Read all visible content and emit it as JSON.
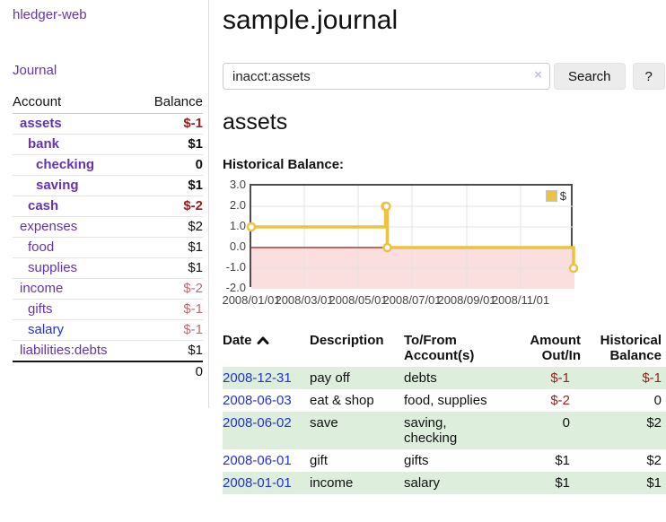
{
  "colors": {
    "link_purple": "#6434af",
    "link_blue": "#2331d8",
    "negative_strong": "#9b1c1c",
    "negative_muted": "#b96c6c",
    "row_shade_green": "#ddeedd",
    "accent_yellow": "#edc240",
    "chart_negative_fill": "#fbdede",
    "chart_zero_line": "#8b1a1a",
    "chart_grid": "#e3e3e3"
  },
  "app": {
    "brand": "hledger-web",
    "nav_journal": "Journal"
  },
  "sidebar": {
    "header": {
      "account": "Account",
      "balance": "Balance"
    },
    "accounts": [
      {
        "name": "assets",
        "depth": 0,
        "balance": "$-1",
        "bold": true,
        "neg": "strong"
      },
      {
        "name": "bank",
        "depth": 1,
        "balance": "$1",
        "bold": true
      },
      {
        "name": "checking",
        "depth": 2,
        "balance": "0",
        "bold": true
      },
      {
        "name": "saving",
        "depth": 2,
        "balance": "$1",
        "bold": true
      },
      {
        "name": "cash",
        "depth": 1,
        "balance": "$-2",
        "bold": true,
        "neg": "strong"
      },
      {
        "name": "expenses",
        "depth": 0,
        "balance": "$2"
      },
      {
        "name": "food",
        "depth": 1,
        "balance": "$1"
      },
      {
        "name": "supplies",
        "depth": 1,
        "balance": "$1"
      },
      {
        "name": "income",
        "depth": 0,
        "balance": "$-2",
        "neg": "muted"
      },
      {
        "name": "gifts",
        "depth": 1,
        "balance": "$-1",
        "neg": "muted"
      },
      {
        "name": "salary",
        "depth": 1,
        "balance": "$-1",
        "neg": "muted",
        "link_color": "blue"
      },
      {
        "name": "liabilities:debts",
        "depth": 0,
        "balance": "$1"
      }
    ],
    "total": "0"
  },
  "header": {
    "title": "sample.journal"
  },
  "search": {
    "value": "inacct:assets",
    "clear_icon": "×",
    "button": "Search",
    "help": "?"
  },
  "account_page": {
    "title": "assets",
    "chart_label": "Historical Balance:"
  },
  "chart_data": {
    "type": "line",
    "title": "Historical Balance",
    "style": "steps",
    "legend_position": "top-right",
    "grid": true,
    "ylim": [
      -2,
      3
    ],
    "y_ticks": [
      "3.0",
      "2.0",
      "1.0",
      "0.0",
      "-1.0",
      "-2.0"
    ],
    "x_range": [
      "2008-01-01",
      "2009-01-01"
    ],
    "x_ticks": [
      "2008/01/01",
      "2008/03/01",
      "2008/05/01",
      "2008/07/01",
      "2008/09/01",
      "2008/11/01"
    ],
    "series": [
      {
        "name": "$",
        "color": "#edc240",
        "points": [
          [
            "2008-01-01",
            1
          ],
          [
            "2008-06-01",
            2
          ],
          [
            "2008-06-02",
            2
          ],
          [
            "2008-06-03",
            0
          ],
          [
            "2008-12-31",
            -1
          ]
        ]
      }
    ]
  },
  "register": {
    "columns": [
      {
        "label": "Date",
        "align": "left",
        "sort_icon": "chevron-up-icon"
      },
      {
        "label": "Description",
        "align": "left"
      },
      {
        "label": "To/From Account(s)",
        "align": "left"
      },
      {
        "label": "Amount Out/In",
        "align": "right"
      },
      {
        "label": "Historical Balance",
        "align": "right"
      }
    ],
    "rows": [
      {
        "date": "2008-12-31",
        "description": "pay off",
        "accounts": "debts",
        "amount": "$-1",
        "balance": "$-1"
      },
      {
        "date": "2008-06-03",
        "description": "eat & shop",
        "accounts": "food, supplies",
        "amount": "$-2",
        "balance": "0"
      },
      {
        "date": "2008-06-02",
        "description": "save",
        "accounts": "saving, checking",
        "amount": "0",
        "balance": "$2"
      },
      {
        "date": "2008-06-01",
        "description": "gift",
        "accounts": "gifts",
        "amount": "$1",
        "balance": "$2"
      },
      {
        "date": "2008-01-01",
        "description": "income",
        "accounts": "salary",
        "amount": "$1",
        "balance": "$1"
      }
    ]
  }
}
